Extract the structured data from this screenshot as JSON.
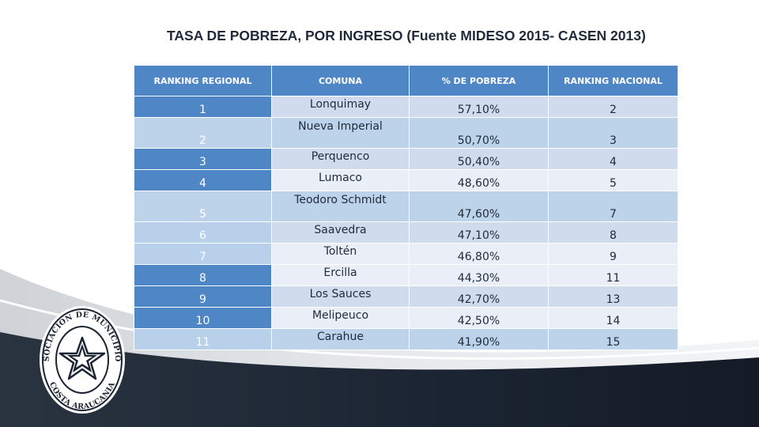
{
  "slide": {
    "title": "TASA DE POBREZA, POR INGRESO (Fuente MIDESO 2015- CASEN 2013)"
  },
  "table": {
    "headers": [
      "RANKING REGIONAL",
      "COMUNA",
      "% DE POBREZA",
      "RANKING NACIONAL"
    ],
    "rows": [
      {
        "ranking_regional": "1",
        "comuna": "Lonquimay",
        "pobreza": "57,10%",
        "ranking_nacional": "2"
      },
      {
        "ranking_regional": "2",
        "comuna": "Nueva Imperial",
        "pobreza": "50,70%",
        "ranking_nacional": "3"
      },
      {
        "ranking_regional": "3",
        "comuna": "Perquenco",
        "pobreza": "50,40%",
        "ranking_nacional": "4"
      },
      {
        "ranking_regional": "4",
        "comuna": "Lumaco",
        "pobreza": "48,60%",
        "ranking_nacional": "5"
      },
      {
        "ranking_regional": "5",
        "comuna": "Teodoro Schmidt",
        "pobreza": "47,60%",
        "ranking_nacional": "7"
      },
      {
        "ranking_regional": "6",
        "comuna": "Saavedra",
        "pobreza": "47,10%",
        "ranking_nacional": "8"
      },
      {
        "ranking_regional": "7",
        "comuna": "Toltén",
        "pobreza": "46,80%",
        "ranking_nacional": "9"
      },
      {
        "ranking_regional": "8",
        "comuna": "Ercilla",
        "pobreza": "44,30%",
        "ranking_nacional": "11"
      },
      {
        "ranking_regional": "9",
        "comuna": "Los Sauces",
        "pobreza": "42,70%",
        "ranking_nacional": "13"
      },
      {
        "ranking_regional": "10",
        "comuna": "Melipeuco",
        "pobreza": "42,50%",
        "ranking_nacional": "14"
      },
      {
        "ranking_regional": "11",
        "comuna": "Carahue",
        "pobreza": "41,90%",
        "ranking_nacional": "15"
      }
    ]
  },
  "logo": {
    "text_top": "ASOCIACION DE MUNICIPIOS",
    "text_bottom": "COSTA ARAUCANIA"
  },
  "colors": {
    "header_blue": "#4f86c6",
    "light_blue": "#b8d0ea",
    "row_dark": "#d0dcee",
    "row_light": "#e9eef7",
    "footer_navy": "#1b2432"
  }
}
